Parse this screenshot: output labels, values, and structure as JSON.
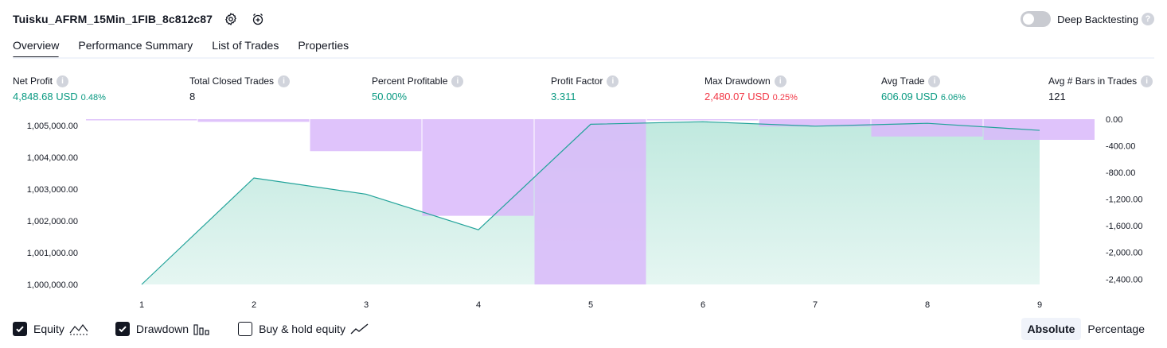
{
  "header": {
    "strategy_name": "Tuisku_AFRM_15Min_1FIB_8c812c87",
    "icons": [
      "settings-icon",
      "add-alert-icon"
    ]
  },
  "deep_backtesting": {
    "label": "Deep Backtesting",
    "enabled": false,
    "help": "?"
  },
  "tabs": [
    {
      "label": "Overview",
      "active": true
    },
    {
      "label": "Performance Summary",
      "active": false
    },
    {
      "label": "List of Trades",
      "active": false
    },
    {
      "label": "Properties",
      "active": false
    }
  ],
  "metrics": {
    "net_profit": {
      "label": "Net Profit",
      "value": "4,848.68 USD",
      "pct": "0.48%"
    },
    "total_closed_trades": {
      "label": "Total Closed Trades",
      "value": "8"
    },
    "percent_profitable": {
      "label": "Percent Profitable",
      "value": "50.00%"
    },
    "profit_factor": {
      "label": "Profit Factor",
      "value": "3.311"
    },
    "max_drawdown": {
      "label": "Max Drawdown",
      "value": "2,480.07 USD",
      "pct": "0.25%"
    },
    "avg_trade": {
      "label": "Avg Trade",
      "value": "606.09 USD",
      "pct": "6.06%"
    },
    "avg_bars": {
      "label": "Avg # Bars in Trades",
      "value": "121"
    },
    "info_glyph": "i"
  },
  "colors": {
    "positive": "#089981",
    "negative": "#f23645",
    "equity_line": "#22a39a",
    "drawdown_fill": "#d9b8fa",
    "equity_fill_top": "#b5e5d9"
  },
  "chart_data": {
    "type": "area",
    "x": [
      "1",
      "2",
      "3",
      "4",
      "5",
      "6",
      "7",
      "8",
      "9"
    ],
    "series": [
      {
        "values": [
          1000000.0,
          1003350,
          1002840,
          1001720,
          1005040,
          1005120,
          1004980,
          1005070,
          1004849
        ]
      },
      {
        "values": [
          0,
          -40,
          -480,
          -1450,
          -2480,
          0,
          -110,
          -260,
          -310
        ]
      }
    ],
    "left_axis": {
      "ticks": [
        "1,000,000.00",
        "1,001,000.00",
        "1,002,000.00",
        "1,003,000.00",
        "1,004,000.00",
        "1,005,000.00"
      ],
      "range": [
        1000000,
        1005200
      ]
    },
    "right_axis": {
      "ticks": [
        "0.00",
        "-400.00",
        "-800.00",
        "-1,200.00",
        "-1,600.00",
        "-2,000.00",
        "-2,400.00"
      ],
      "range": [
        -2480,
        0
      ]
    }
  },
  "legend": {
    "equity": {
      "label": "Equity",
      "checked": true
    },
    "drawdown": {
      "label": "Drawdown",
      "checked": true
    },
    "buy_hold": {
      "label": "Buy & hold equity",
      "checked": false
    }
  },
  "modes": {
    "absolute": "Absolute",
    "percentage": "Percentage",
    "active": "absolute"
  }
}
